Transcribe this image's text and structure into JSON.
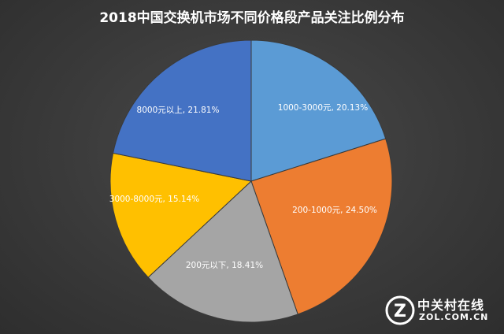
{
  "chart_data": {
    "type": "pie",
    "title": "2018中国交换机市场不同价格段产品关注比例分布",
    "start_angle_deg": 0,
    "direction": "clockwise",
    "slices": [
      {
        "label": "1000-3000元",
        "value": 20.13,
        "display": "1000-3000元, 20.13%",
        "color": "#5b9bd5"
      },
      {
        "label": "200-1000元",
        "value": 24.5,
        "display": "200-1000元, 24.50%",
        "color": "#ed7d31"
      },
      {
        "label": "200元以下",
        "value": 18.41,
        "display": "200元以下, 18.41%",
        "color": "#a5a5a5"
      },
      {
        "label": "3000-8000元",
        "value": 15.14,
        "display": "3000-8000元, 15.14%",
        "color": "#ffc000"
      },
      {
        "label": "8000元以上",
        "value": 21.81,
        "display": "8000元以上, 21.81%",
        "color": "#4472c4"
      }
    ]
  },
  "watermark": {
    "logo_letter": "Z",
    "brand_cn": "中关村在线",
    "brand_en": "ZOL.COM.CN"
  }
}
